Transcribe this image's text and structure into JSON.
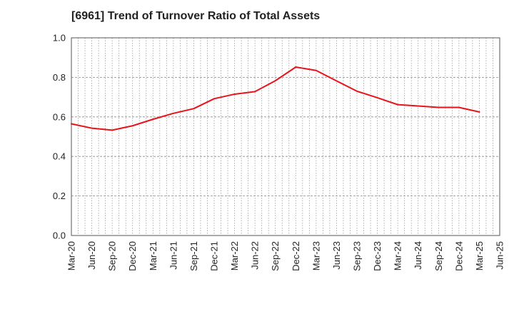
{
  "chart_data": {
    "type": "line",
    "title": "[6961]  Trend of Turnover Ratio of Total Assets",
    "xlabel": "",
    "ylabel": "",
    "ylim": [
      0.0,
      1.0
    ],
    "yticks": [
      "0.0",
      "0.2",
      "0.4",
      "0.6",
      "0.8",
      "1.0"
    ],
    "xticks": [
      "Mar-20",
      "Jun-20",
      "Sep-20",
      "Dec-20",
      "Mar-21",
      "Jun-21",
      "Sep-21",
      "Dec-21",
      "Mar-22",
      "Jun-22",
      "Sep-22",
      "Dec-22",
      "Mar-23",
      "Jun-23",
      "Sep-23",
      "Dec-23",
      "Mar-24",
      "Jun-24",
      "Sep-24",
      "Dec-24",
      "Mar-25",
      "Jun-25"
    ],
    "grid": true,
    "legend": "none",
    "series": [
      {
        "color": "#e8141c",
        "x": [
          "Mar-20",
          "Jun-20",
          "Sep-20",
          "Dec-20",
          "Mar-21",
          "Jun-21",
          "Sep-21",
          "Dec-21",
          "Mar-22",
          "Jun-22",
          "Sep-22",
          "Dec-22",
          "Mar-23",
          "Jun-23",
          "Sep-23",
          "Dec-23",
          "Mar-24",
          "Jun-24",
          "Sep-24",
          "Dec-24",
          "Mar-25"
        ],
        "values": [
          0.565,
          0.543,
          0.533,
          0.555,
          0.588,
          0.618,
          0.642,
          0.692,
          0.715,
          0.728,
          0.783,
          0.852,
          0.835,
          0.782,
          0.73,
          0.697,
          0.662,
          0.655,
          0.648,
          0.648,
          0.625
        ]
      }
    ]
  }
}
